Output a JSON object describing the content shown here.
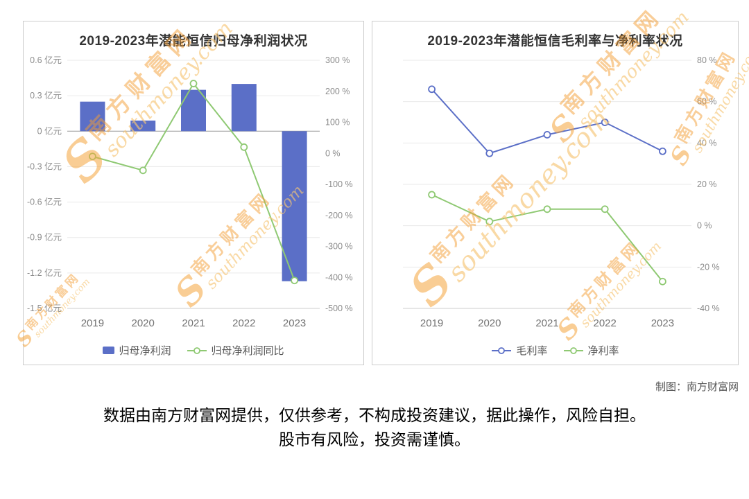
{
  "page": {
    "credit": "制图：南方财富网",
    "disclaimer_line1": "数据由南方财富网提供，仅供参考，不构成投资建议，据此操作，风险自担。",
    "disclaimer_line2": "股市有风险，投资需谨慎。"
  },
  "watermark": {
    "initial": "S",
    "cn": "南方财富网",
    "en": "southmoney.com",
    "color": "#F5A43C"
  },
  "chart_data": [
    {
      "type": "combo_bar_line",
      "title": "2019-2023年潜能恒信归母净利润状况",
      "categories": [
        "2019",
        "2020",
        "2021",
        "2022",
        "2023"
      ],
      "series": [
        {
          "name": "归母净利润",
          "type": "bar",
          "axis": "left",
          "unit": "亿元",
          "color": "#5B6FC7",
          "values": [
            0.25,
            0.09,
            0.35,
            0.4,
            -1.27
          ]
        },
        {
          "name": "归母净利润同比",
          "type": "line",
          "axis": "right",
          "unit": "%",
          "color": "#8FC973",
          "values": [
            -10,
            -55,
            225,
            20,
            -410
          ]
        }
      ],
      "left_axis": {
        "min": -1.5,
        "max": 0.6,
        "step": 0.3,
        "unit": "亿元"
      },
      "right_axis": {
        "min": -500,
        "max": 300,
        "step": 100,
        "unit": "%"
      },
      "grid": true,
      "legend_position": "bottom"
    },
    {
      "type": "line",
      "title": "2019-2023年潜能恒信毛利率与净利率状况",
      "categories": [
        "2019",
        "2020",
        "2021",
        "2022",
        "2023"
      ],
      "series": [
        {
          "name": "毛利率",
          "type": "line",
          "axis": "right",
          "unit": "%",
          "color": "#5B6FC7",
          "values": [
            66,
            35,
            44,
            50,
            36
          ]
        },
        {
          "name": "净利率",
          "type": "line",
          "axis": "right",
          "unit": "%",
          "color": "#8FC973",
          "values": [
            15,
            2,
            8,
            8,
            -27
          ]
        }
      ],
      "right_axis": {
        "min": -40,
        "max": 80,
        "step": 20,
        "unit": "%"
      },
      "grid": true,
      "legend_position": "bottom"
    }
  ]
}
